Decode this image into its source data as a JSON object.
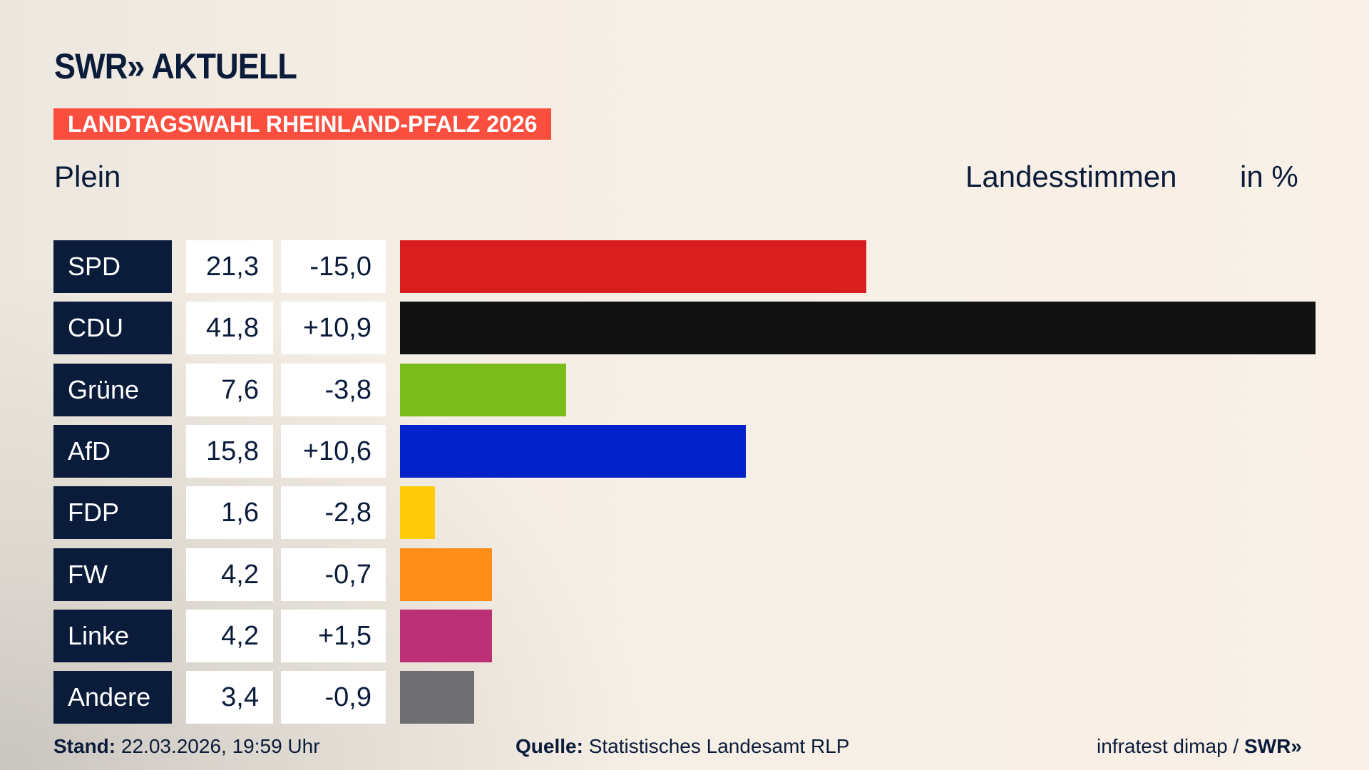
{
  "header": {
    "logo": "SWR» AKTUELL",
    "banner": "LANDTAGSWAHL RHEINLAND-PFALZ 2026",
    "region": "Plein",
    "vote_type": "Landesstimmen",
    "unit": "in %"
  },
  "chart_data": {
    "type": "bar",
    "orientation": "horizontal",
    "categories": [
      "SPD",
      "CDU",
      "Grüne",
      "AfD",
      "FDP",
      "FW",
      "Linke",
      "Andere"
    ],
    "values": [
      21.3,
      41.8,
      7.6,
      15.8,
      1.6,
      4.2,
      4.2,
      3.4
    ],
    "value_labels": [
      "21,3",
      "41,8",
      "7,6",
      "15,8",
      "1,6",
      "4,2",
      "4,2",
      "3,4"
    ],
    "changes": [
      -15.0,
      10.9,
      -3.8,
      10.6,
      -2.8,
      -0.7,
      1.5,
      -0.9
    ],
    "change_labels": [
      "-15,0",
      "+10,9",
      "-3,8",
      "+10,6",
      "-2,8",
      "-0,7",
      "+1,5",
      "-0,9"
    ],
    "colors": [
      "#d81e1e",
      "#121212",
      "#79bc1c",
      "#0022c8",
      "#ffcc0a",
      "#ff8d1a",
      "#bc3075",
      "#6f6f71"
    ],
    "xlim": [
      0,
      41.8
    ]
  },
  "footer": {
    "stand_label": "Stand:",
    "stand_value": "22.03.2026, 19:59 Uhr",
    "source_label": "Quelle:",
    "source_value": "Statistisches Landesamt RLP",
    "credit": "infratest dimap /",
    "credit_logo": "SWR»"
  }
}
